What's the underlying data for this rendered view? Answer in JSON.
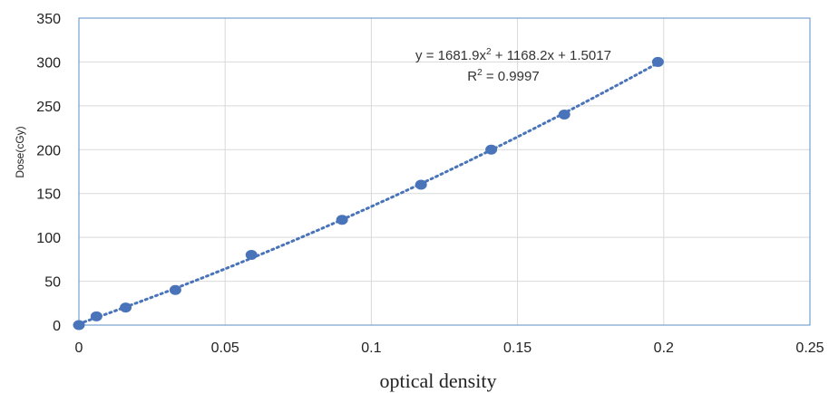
{
  "chart_data": {
    "type": "scatter",
    "xlabel": "optical density",
    "ylabel": "Dose(cGy)",
    "xlim": [
      0,
      0.25
    ],
    "ylim": [
      0,
      350
    ],
    "x_ticks": [
      "0",
      "0.05",
      "0.1",
      "0.15",
      "0.2",
      "0.25"
    ],
    "y_ticks": [
      "0",
      "50",
      "100",
      "150",
      "200",
      "250",
      "300",
      "350"
    ],
    "grid": true,
    "series": [
      {
        "x": [
          0,
          0.006,
          0.016,
          0.033,
          0.059,
          0.09,
          0.117,
          0.141,
          0.166,
          0.198
        ],
        "y": [
          0,
          10,
          20,
          40,
          80,
          120,
          160,
          200,
          240,
          300
        ],
        "color": "#4a74b9"
      }
    ],
    "trendline": {
      "kind": "polynomial-2",
      "coefficients": [
        1681.9,
        1168.2,
        1.5017
      ],
      "color": "#4a74b9",
      "style": "dotted",
      "equation_prefix": "y = 1681.9x",
      "equation_sup": "2",
      "equation_suffix": " + 1168.2x + 1.5017",
      "r2_prefix": "R",
      "r2_sup": "2",
      "r2_suffix": " = 0.9997"
    }
  },
  "colors": {
    "marker": "#4a74b9",
    "grid": "#d9d9d9",
    "plot_border": "#5b8fc7"
  }
}
